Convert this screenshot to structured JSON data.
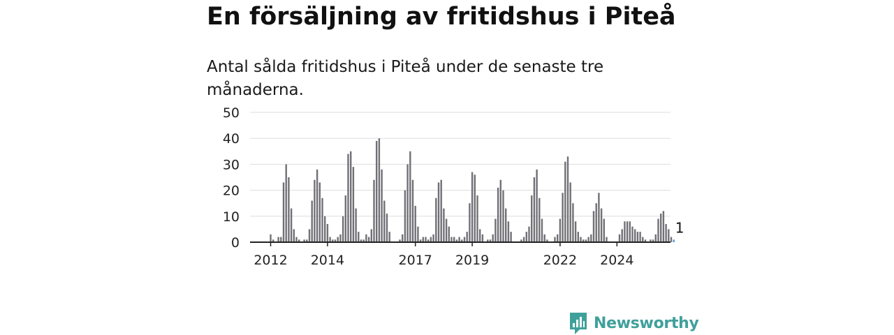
{
  "header": {
    "title": "En försäljning av fritidshus i Piteå",
    "subtitle": "Antal sålda fritidshus i Piteå under de senaste tre månaderna."
  },
  "brand": {
    "name": "Newsworthy",
    "icon": "newsworthy-bar-chart-icon",
    "color": "#3fa09b"
  },
  "chart_data": {
    "type": "bar",
    "title": "",
    "xlabel": "",
    "ylabel": "",
    "ylim": [
      0,
      50
    ],
    "yticks": [
      0,
      10,
      20,
      30,
      40,
      50
    ],
    "xtick_labels": [
      "2012",
      "2014",
      "2017",
      "2019",
      "2022",
      "2024"
    ],
    "grid": true,
    "bar_color": "#707076",
    "highlight_color": "#5b9bd5",
    "annotation": "1",
    "series": [
      {
        "values": [
          3,
          1,
          0,
          2,
          2,
          23,
          30,
          25,
          13,
          5,
          2,
          1,
          0,
          1,
          1,
          5,
          16,
          24,
          28,
          23,
          17,
          10,
          7,
          2,
          1,
          1,
          2,
          3,
          10,
          18,
          34,
          35,
          29,
          13,
          4,
          1,
          1,
          3,
          2,
          5,
          24,
          39,
          40,
          28,
          16,
          11,
          4,
          0,
          0,
          0,
          1,
          3,
          20,
          30,
          35,
          24,
          14,
          6,
          1,
          2,
          2,
          1,
          2,
          3,
          17,
          23,
          24,
          13,
          9,
          6,
          2,
          2,
          1,
          2,
          1,
          2,
          4,
          15,
          27,
          26,
          18,
          5,
          3,
          0,
          1,
          1,
          3,
          9,
          21,
          24,
          20,
          13,
          8,
          4,
          0,
          0,
          0,
          1,
          2,
          4,
          6,
          18,
          25,
          28,
          17,
          9,
          3,
          1,
          0,
          0,
          2,
          3,
          9,
          19,
          31,
          33,
          23,
          15,
          8,
          4,
          2,
          1,
          1,
          2,
          3,
          12,
          15,
          19,
          13,
          9,
          2,
          0,
          0,
          0,
          0,
          3,
          5,
          8,
          8,
          8,
          6,
          5,
          4,
          4,
          2,
          1,
          0,
          1,
          1,
          3,
          9,
          11,
          12,
          7,
          5,
          2,
          1
        ]
      }
    ]
  }
}
